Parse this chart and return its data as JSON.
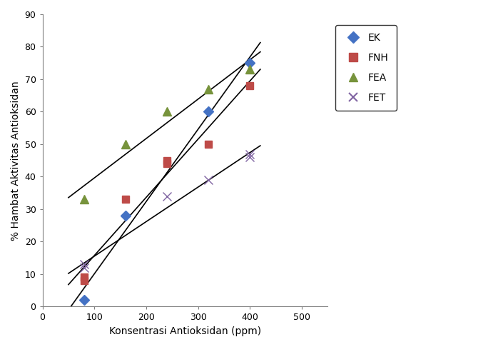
{
  "series": {
    "EK": {
      "x": [
        80,
        160,
        320,
        400
      ],
      "y": [
        2,
        28,
        60,
        75
      ],
      "color": "#4472C4",
      "marker": "D",
      "label": "EK",
      "markersize": 7
    },
    "FNH": {
      "x": [
        80,
        80,
        160,
        240,
        240,
        320,
        400
      ],
      "y": [
        8,
        9,
        33,
        45,
        44,
        50,
        68
      ],
      "color": "#BE4B48",
      "marker": "s",
      "label": "FNH",
      "markersize": 7
    },
    "FEA": {
      "x": [
        80,
        160,
        240,
        320,
        400
      ],
      "y": [
        33,
        50,
        60,
        67,
        73
      ],
      "color": "#77933C",
      "marker": "^",
      "label": "FEA",
      "markersize": 8
    },
    "FET": {
      "x": [
        80,
        80,
        240,
        320,
        400,
        400
      ],
      "y": [
        13,
        12,
        34,
        39,
        46,
        47
      ],
      "color": "#8064A2",
      "marker": "x",
      "label": "FET",
      "markersize": 8
    }
  },
  "xlabel": "Konsentrasi Antioksidan (ppm)",
  "ylabel": "% Hambat Aktivitas Antioksidan",
  "xlim": [
    0,
    550
  ],
  "ylim": [
    0,
    90
  ],
  "xticks": [
    0,
    100,
    200,
    300,
    400,
    500
  ],
  "yticks": [
    0,
    10,
    20,
    30,
    40,
    50,
    60,
    70,
    80,
    90
  ],
  "figsize": [
    6.98,
    4.86
  ],
  "dpi": 100,
  "line_color": "black",
  "line_width": 1.2
}
